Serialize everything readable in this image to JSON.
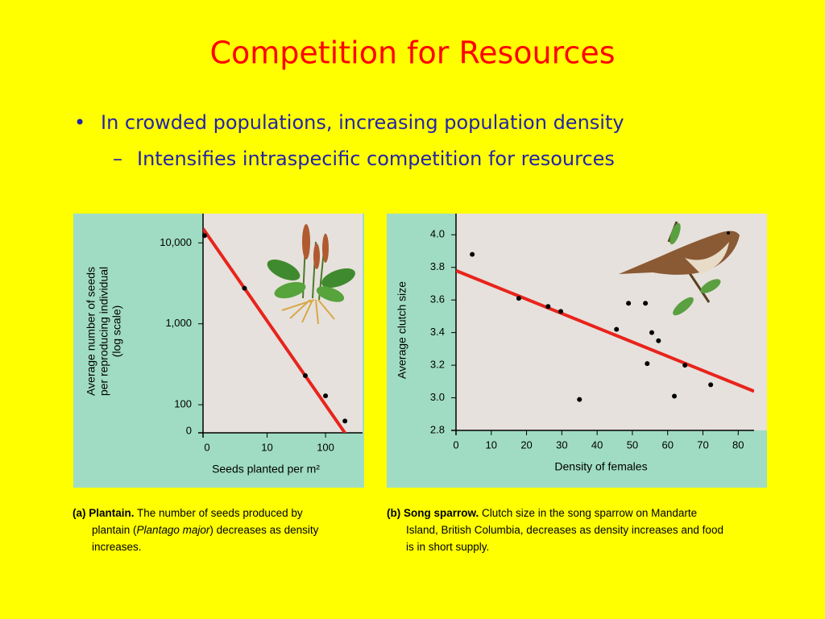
{
  "title": "Competition for Resources",
  "bullets": [
    {
      "marker": "•",
      "text": "In crowded populations, increasing population density"
    },
    {
      "marker": "–",
      "text": "Intensifies intraspecific competition for resources"
    }
  ],
  "chart_data": [
    {
      "type": "scatter",
      "log_x": true,
      "log_y": true,
      "ylabel": [
        "Average number of seeds",
        "per reproducing individual",
        "(log scale)"
      ],
      "xlabel": "Seeds planted per m²",
      "x_origin_label": "0",
      "y_origin_label": "0",
      "xlim": [
        0.8,
        430
      ],
      "ylim": [
        45,
        23000
      ],
      "xticks": [
        10,
        100
      ],
      "yticks": [
        100,
        {
          "value": 1000,
          "label": "1,000"
        },
        {
          "value": 10000,
          "label": "10,000"
        }
      ],
      "x": [
        0.85,
        4.1,
        45,
        100,
        215
      ],
      "values": [
        12300,
        2750,
        229,
        129,
        63
      ],
      "color": "#000000",
      "trend": {
        "x": [
          0.8,
          240
        ],
        "y": [
          15000,
          40
        ],
        "color": "#e8241c"
      },
      "caption": {
        "label": "(a) Plantain.",
        "text": [
          "The number of seeds produced by plantain (",
          "Plantago major",
          ") decreases as density increases."
        ]
      }
    },
    {
      "type": "scatter",
      "log_x": false,
      "log_y": false,
      "ylabel": [
        "Average clutch size"
      ],
      "xlabel": "Density of females",
      "xlim": [
        0,
        84.5
      ],
      "ylim": [
        2.8,
        4.13
      ],
      "xticks": [
        0,
        10,
        20,
        30,
        40,
        50,
        60,
        70,
        80
      ],
      "yticks": [
        2.8,
        {
          "value": 3,
          "label": "3.0"
        },
        3.2,
        3.4,
        3.6,
        3.8,
        {
          "value": 4,
          "label": "4.0"
        }
      ],
      "x": [
        4.6,
        17.8,
        26.1,
        29.7,
        35.0,
        45.5,
        48.9,
        53.7,
        55.5,
        57.4,
        54.2,
        61.9,
        64.9,
        72.2
      ],
      "values": [
        3.88,
        3.61,
        3.56,
        3.53,
        2.99,
        3.42,
        3.58,
        3.58,
        3.4,
        3.35,
        3.21,
        3.01,
        3.2,
        3.08
      ],
      "color": "#000000",
      "trend": {
        "x": [
          0,
          84.5
        ],
        "y": [
          3.78,
          3.04
        ],
        "color": "#e8241c"
      },
      "caption": {
        "label": "(b) Song sparrow.",
        "text": [
          "Clutch size in the song sparrow on Mandarte Island, British Columbia, decreases as density increases and food is in short supply."
        ]
      }
    }
  ]
}
